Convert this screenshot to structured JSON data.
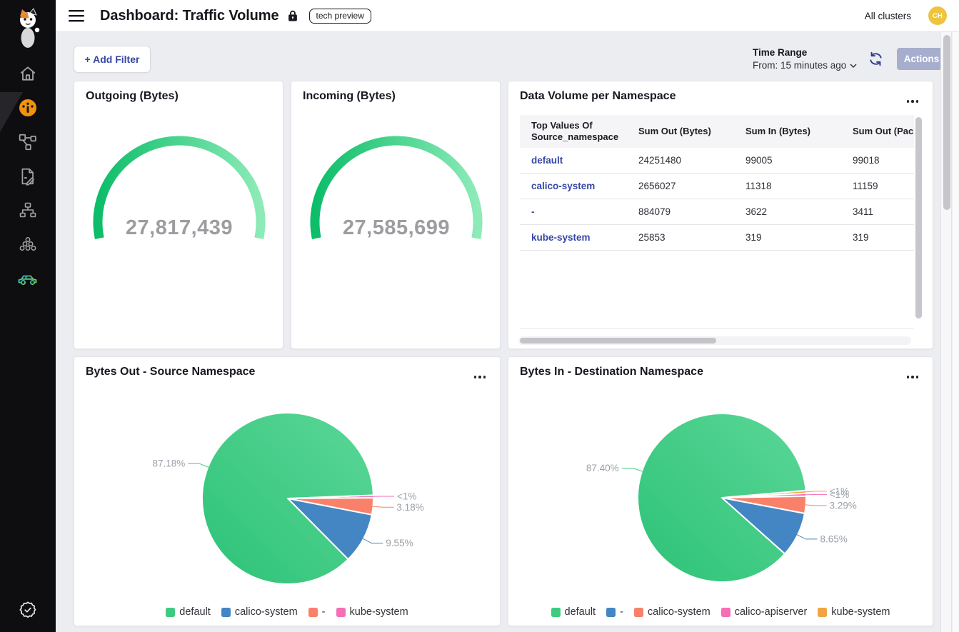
{
  "colors": {
    "accent_green": "#3ecb81",
    "accent_blue": "#4486c3",
    "accent_salmon": "#f9816a",
    "accent_pink": "#f66eb5",
    "accent_orange": "#f2a440",
    "link_indigo": "#3647a6",
    "active_nav_orange": "#f2930d",
    "avatar_gold": "#eec43e",
    "gauge_number_gray": "#9d9da1"
  },
  "sidebar": {
    "icon_names": [
      "calico-cat-logo",
      "home-icon",
      "dashboard-gauge-icon",
      "graph-nodes-icon",
      "document-pencil-icon",
      "network-tree-icon",
      "circles-cluster-icon",
      "car-icon",
      "verified-badge-icon"
    ],
    "active_item": "dashboard-gauge-icon"
  },
  "header": {
    "title": "Dashboard: Traffic Volume",
    "badge": "tech preview",
    "clusters_label": "All clusters",
    "avatar_initials": "CH"
  },
  "toolbar": {
    "add_filter_label": "+ Add Filter",
    "time_range_label": "Time Range",
    "time_range_value": "From: 15 minutes ago",
    "actions_label": "Actions"
  },
  "chart_data": [
    {
      "id": "outgoing_gauge",
      "type": "gauge",
      "title": "Outgoing (Bytes)",
      "value": 27817439,
      "display_value": "27,817,439",
      "start_angle": 191.5,
      "end_angle": -11.5,
      "color_start": "#0cbd69",
      "color_end": "#8debb8"
    },
    {
      "id": "incoming_gauge",
      "type": "gauge",
      "title": "Incoming (Bytes)",
      "value": 27585699,
      "display_value": "27,585,699",
      "start_angle": 191.5,
      "end_angle": -11.5,
      "color_start": "#0cbd69",
      "color_end": "#8debb8"
    },
    {
      "id": "namespace_table",
      "type": "table",
      "title": "Data Volume per Namespace",
      "columns": [
        "Top Values Of Source_namespace",
        "Sum Out (Bytes)",
        "Sum In (Bytes)",
        "Sum Out (Packets)"
      ],
      "rows": [
        [
          "default",
          "24251480",
          "99005",
          "99018"
        ],
        [
          "calico-system",
          "2656027",
          "11318",
          "11159"
        ],
        [
          "-",
          "884079",
          "3622",
          "3411"
        ],
        [
          "kube-system",
          "25853",
          "319",
          "319"
        ]
      ]
    },
    {
      "id": "bytes_out_pie",
      "type": "pie",
      "title": "Bytes Out - Source Namespace",
      "start_angle": 2.2,
      "legend_position": "bottom",
      "slices": [
        {
          "name": "default",
          "pct_label": "87.18%",
          "value": 87.18,
          "color": "#3ecb81",
          "gradient": true
        },
        {
          "name": "calico-system",
          "pct_label": "9.55%",
          "value": 9.55,
          "color": "#4486c3"
        },
        {
          "name": "-",
          "pct_label": "3.18%",
          "value": 3.18,
          "color": "#f9816a"
        },
        {
          "name": "kube-system",
          "pct_label": "<1%",
          "value": 0.09,
          "draw_pct": 0.5,
          "color": "#f66eb5"
        }
      ]
    },
    {
      "id": "bytes_in_pie",
      "type": "pie",
      "title": "Bytes In - Destination Namespace",
      "start_angle": 5,
      "legend_position": "bottom",
      "slices": [
        {
          "name": "default",
          "pct_label": "87.40%",
          "value": 87.4,
          "color": "#3ecb81",
          "gradient": true
        },
        {
          "name": "-",
          "pct_label": "8.65%",
          "value": 8.65,
          "color": "#4486c3"
        },
        {
          "name": "calico-system",
          "pct_label": "3.29%",
          "value": 3.29,
          "color": "#f9816a"
        },
        {
          "name": "calico-apiserver",
          "pct_label": "<1%",
          "value": 0.5,
          "draw_pct": 0.55,
          "color": "#f66eb5"
        },
        {
          "name": "kube-system",
          "pct_label": "<1%",
          "value": 0.6,
          "draw_pct": 0.55,
          "color": "#f2a440"
        }
      ]
    }
  ]
}
